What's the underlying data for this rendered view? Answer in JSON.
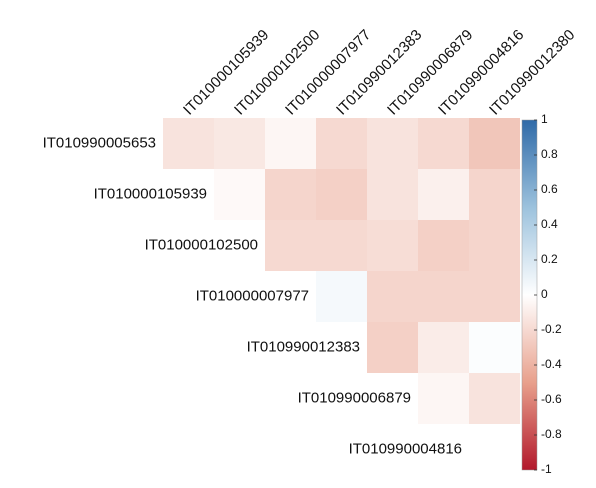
{
  "chart_data": {
    "type": "heatmap",
    "rows": [
      "IT010990005653",
      "IT010000105939",
      "IT010000102500",
      "IT010000007977",
      "IT010990012383",
      "IT010990006879",
      "IT010990004816"
    ],
    "columns": [
      "IT010000105939",
      "IT010000102500",
      "IT010000007977",
      "IT010990012383",
      "IT010990006879",
      "IT010990004816",
      "IT010990012380"
    ],
    "values": [
      [
        -0.15,
        -0.12,
        -0.05,
        -0.2,
        -0.15,
        -0.2,
        -0.3
      ],
      [
        null,
        -0.03,
        -0.22,
        -0.25,
        -0.15,
        -0.08,
        -0.22
      ],
      [
        null,
        null,
        -0.2,
        -0.2,
        -0.18,
        -0.25,
        -0.22
      ],
      [
        null,
        null,
        null,
        0.05,
        -0.22,
        -0.22,
        -0.22
      ],
      [
        null,
        null,
        null,
        null,
        -0.25,
        -0.1,
        0.02
      ],
      [
        null,
        null,
        null,
        null,
        null,
        -0.05,
        -0.15
      ],
      [
        null,
        null,
        null,
        null,
        null,
        null,
        0.0
      ]
    ],
    "colorscale": [
      "#b2182b",
      "#e8a08c",
      "#ffffff",
      "#9cc2dd",
      "#2f6aa8"
    ],
    "zlim": [
      -1,
      1
    ],
    "zticks": [
      1,
      0.8,
      0.6,
      0.4,
      0.2,
      0,
      -0.2,
      -0.4,
      -0.6,
      -0.8,
      -1
    ]
  }
}
